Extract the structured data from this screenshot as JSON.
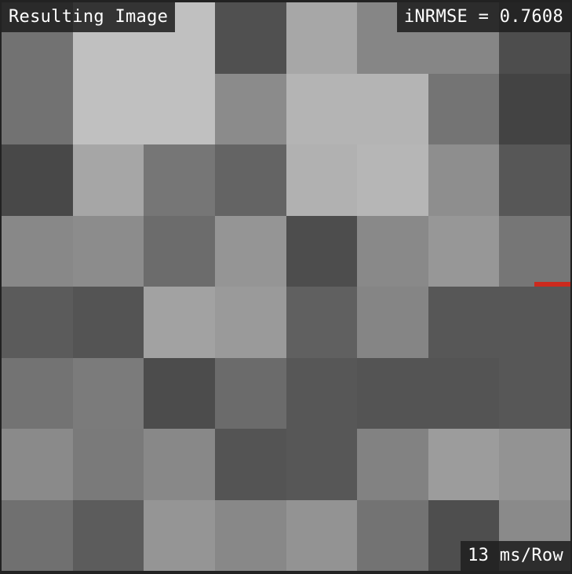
{
  "overlay": {
    "title": "Resulting Image",
    "metric": "iNRMSE = 0.7608",
    "timing": "13 ms/Row"
  },
  "colors": {
    "frame": "#222222",
    "label_bg": "#202020",
    "label_text": "#ffffff",
    "marker": "#cc2a1e"
  },
  "grid": {
    "rows": 8,
    "cols": 8,
    "cells": [
      [
        "#727272",
        "#c0c0c0",
        "#c0c0c0",
        "#505050",
        "#a7a7a7",
        "#868686",
        "#868686",
        "#4d4d4d"
      ],
      [
        "#727272",
        "#c0c0c0",
        "#c0c0c0",
        "#8b8b8b",
        "#b4b4b4",
        "#b4b4b4",
        "#747474",
        "#434343"
      ],
      [
        "#484848",
        "#a6a6a6",
        "#767676",
        "#646464",
        "#b1b1b1",
        "#b6b6b6",
        "#8e8e8e",
        "#575757"
      ],
      [
        "#888888",
        "#8c8c8c",
        "#6c6c6c",
        "#959595",
        "#4d4d4d",
        "#898989",
        "#979797",
        "#767676"
      ],
      [
        "#5b5b5b",
        "#545454",
        "#a2a2a2",
        "#9a9a9a",
        "#606060",
        "#858585",
        "#575757",
        "#575757"
      ],
      [
        "#737373",
        "#7b7b7b",
        "#4c4c4c",
        "#6b6b6b",
        "#575757",
        "#545454",
        "#545454",
        "#575757"
      ],
      [
        "#8a8a8a",
        "#7a7a7a",
        "#888888",
        "#545454",
        "#575757",
        "#828282",
        "#9c9c9c",
        "#939393"
      ],
      [
        "#707070",
        "#5c5c5c",
        "#959595",
        "#888888",
        "#939393",
        "#737373",
        "#4e4e4e",
        "#8a8a8a"
      ]
    ]
  }
}
